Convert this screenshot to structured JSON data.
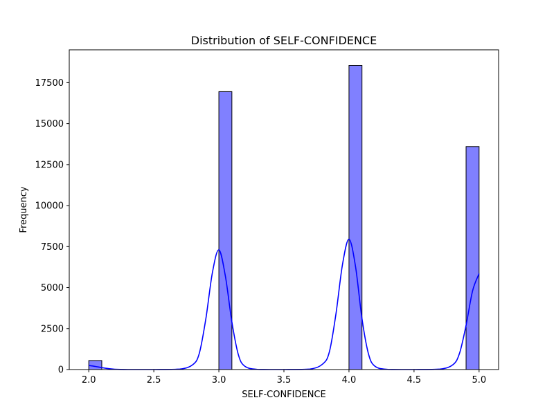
{
  "chart_data": {
    "type": "bar",
    "title": "Distribution of SELF-CONFIDENCE",
    "xlabel": "SELF-CONFIDENCE",
    "ylabel": "Frequency",
    "xlim": [
      1.85,
      5.15
    ],
    "ylim": [
      0,
      19500
    ],
    "xticks": [
      2.0,
      2.5,
      3.0,
      3.5,
      4.0,
      4.5,
      5.0
    ],
    "xtick_labels": [
      "2.0",
      "2.5",
      "3.0",
      "3.5",
      "4.0",
      "4.5",
      "5.0"
    ],
    "yticks": [
      0,
      2500,
      5000,
      7500,
      10000,
      12500,
      15000,
      17500
    ],
    "ytick_labels": [
      "0",
      "2500",
      "5000",
      "7500",
      "10000",
      "12500",
      "15000",
      "17500"
    ],
    "grid": false,
    "bins": [
      {
        "start": 2.0,
        "end": 2.1,
        "count": 550
      },
      {
        "start": 3.0,
        "end": 3.1,
        "count": 16950
      },
      {
        "start": 4.0,
        "end": 4.1,
        "count": 18550
      },
      {
        "start": 4.9,
        "end": 5.0,
        "count": 13600
      }
    ],
    "kde": {
      "x": [
        2.0,
        2.05,
        2.1,
        2.15,
        2.2,
        2.3,
        2.5,
        2.7,
        2.8,
        2.85,
        2.9,
        2.95,
        3.0,
        3.05,
        3.1,
        3.15,
        3.2,
        3.3,
        3.5,
        3.7,
        3.8,
        3.85,
        3.9,
        3.95,
        4.0,
        4.05,
        4.1,
        4.15,
        4.2,
        4.3,
        4.5,
        4.7,
        4.8,
        4.85,
        4.9,
        4.95,
        5.0
      ],
      "y": [
        250,
        190,
        120,
        60,
        20,
        0,
        0,
        30,
        300,
        1000,
        3100,
        5900,
        7300,
        5700,
        2900,
        900,
        200,
        10,
        0,
        30,
        350,
        1100,
        3400,
        6400,
        7950,
        6300,
        3100,
        950,
        200,
        10,
        0,
        30,
        300,
        1000,
        2700,
        4800,
        5850
      ]
    },
    "colors": {
      "bar_fill": "#8080ff",
      "bar_edge": "#000000",
      "kde_line": "#0000ff"
    }
  }
}
